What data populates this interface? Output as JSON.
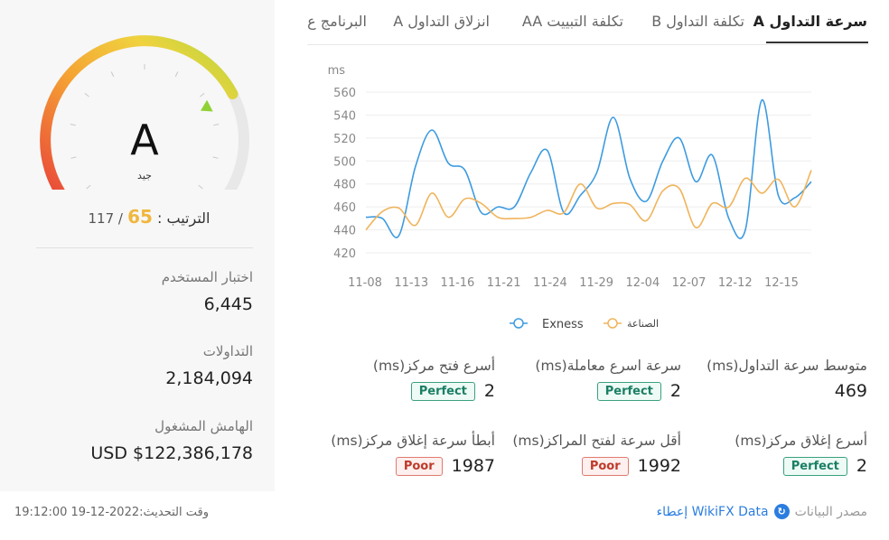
{
  "gauge": {
    "grade": "A",
    "grade_label": "جيد",
    "rank_label": "الترتيب",
    "rank_value": "65",
    "rank_total": "117",
    "level": 0.74
  },
  "stats": [
    {
      "label": "اختبار المستخدم",
      "value": "6,445"
    },
    {
      "label": "التداولات",
      "value": "2,184,094"
    },
    {
      "label": "الهامش المشغول",
      "value": "USD $122,386,178"
    }
  ],
  "update_time": "وقت التحديث:2022-12-19 19:12:00",
  "tabs": [
    {
      "label": "سرعة التداول A",
      "active": true
    },
    {
      "label": "تكلفة التداول B",
      "active": false
    },
    {
      "label": "تكلفة التبييت AA",
      "active": false
    },
    {
      "label": "انزلاق التداول A",
      "active": false
    },
    {
      "label": "البرنامج ع",
      "active": false
    }
  ],
  "chart_data": {
    "type": "line",
    "ylabel": "ms",
    "ylim": [
      420,
      560
    ],
    "yticks": [
      560,
      540,
      520,
      500,
      480,
      460,
      440,
      420
    ],
    "xticks": [
      "11-08",
      "11-13",
      "11-16",
      "11-21",
      "11-24",
      "11-29",
      "12-04",
      "12-07",
      "12-12",
      "12-15"
    ],
    "series": [
      {
        "name": "Exness",
        "color": "#3d9be0",
        "values": [
          451,
          450,
          435,
          495,
          527,
          498,
          492,
          455,
          460,
          460,
          490,
          509,
          455,
          470,
          490,
          538,
          485,
          465,
          500,
          520,
          482,
          505,
          450,
          440,
          553,
          470,
          468,
          482
        ]
      },
      {
        "name": "الصناعة",
        "color": "#f0b45c",
        "values": [
          440,
          456,
          459,
          444,
          472,
          451,
          467,
          463,
          451,
          450,
          451,
          457,
          455,
          480,
          459,
          463,
          462,
          448,
          474,
          476,
          442,
          463,
          460,
          485,
          472,
          484,
          460,
          492
        ]
      }
    ]
  },
  "legend": [
    {
      "name": "Exness",
      "color": "#3d9be0"
    },
    {
      "name": "الصناعة",
      "color": "#f0b45c"
    }
  ],
  "metrics": [
    {
      "label": "متوسط سرعة التداول(ms)",
      "value": "469",
      "badge": ""
    },
    {
      "label": "سرعة اسرع معاملة(ms)",
      "value": "2",
      "badge": "Perfect"
    },
    {
      "label": "أسرع فتح مركز(ms)",
      "value": "2",
      "badge": "Perfect"
    },
    {
      "label": "أسرع إغلاق مركز(ms)",
      "value": "2",
      "badge": "Perfect"
    },
    {
      "label": "أقل سرعة لفتح المراكز(ms)",
      "value": "1992",
      "badge": "Poor"
    },
    {
      "label": "أبطأ سرعة إغلاق مركز(ms)",
      "value": "1987",
      "badge": "Poor"
    }
  ],
  "source": {
    "label": "مصدر البيانات",
    "link": "WikiFX Data إعطاء"
  }
}
